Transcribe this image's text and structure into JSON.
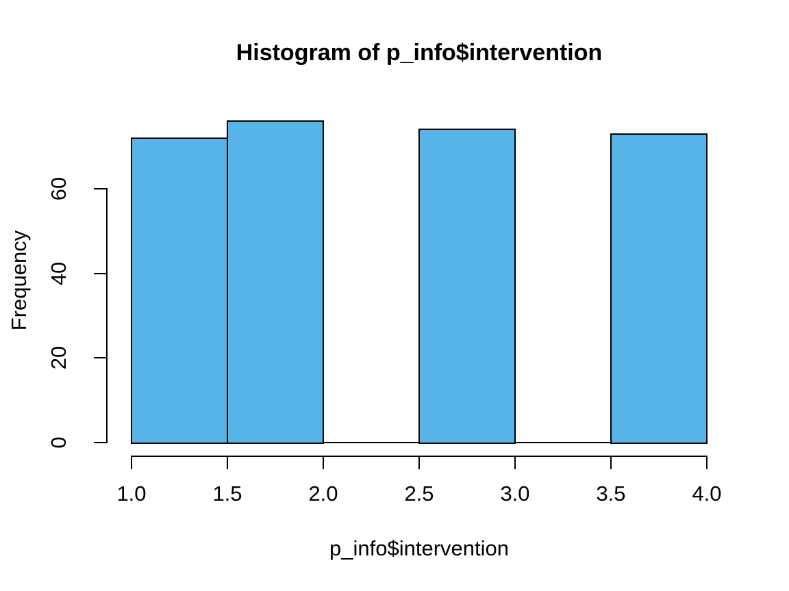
{
  "chart_data": {
    "type": "bar",
    "subtype": "histogram",
    "title": "Histogram of p_info$intervention",
    "xlabel": "p_info$intervention",
    "ylabel": "Frequency",
    "bins": [
      {
        "from": 1.0,
        "to": 1.5,
        "count": 72
      },
      {
        "from": 1.5,
        "to": 2.0,
        "count": 76
      },
      {
        "from": 2.0,
        "to": 2.5,
        "count": 0
      },
      {
        "from": 2.5,
        "to": 3.0,
        "count": 74
      },
      {
        "from": 3.0,
        "to": 3.5,
        "count": 0
      },
      {
        "from": 3.5,
        "to": 4.0,
        "count": 73
      }
    ],
    "x_ticks": [
      "1.0",
      "1.5",
      "2.0",
      "2.5",
      "3.0",
      "3.5",
      "4.0"
    ],
    "x_tick_values": [
      1.0,
      1.5,
      2.0,
      2.5,
      3.0,
      3.5,
      4.0
    ],
    "y_ticks": [
      "0",
      "20",
      "40",
      "60"
    ],
    "y_tick_values": [
      0,
      20,
      40,
      60
    ],
    "x_range": [
      1.0,
      4.0
    ],
    "ylim": [
      0,
      76
    ],
    "y_axis_max_tick": 60,
    "grid": false,
    "legend": "none",
    "colors": {
      "bar_fill": "#56B4E9",
      "bar_stroke": "#000000",
      "axis": "#000000",
      "text": "#000000",
      "background": "#FFFFFF"
    }
  }
}
